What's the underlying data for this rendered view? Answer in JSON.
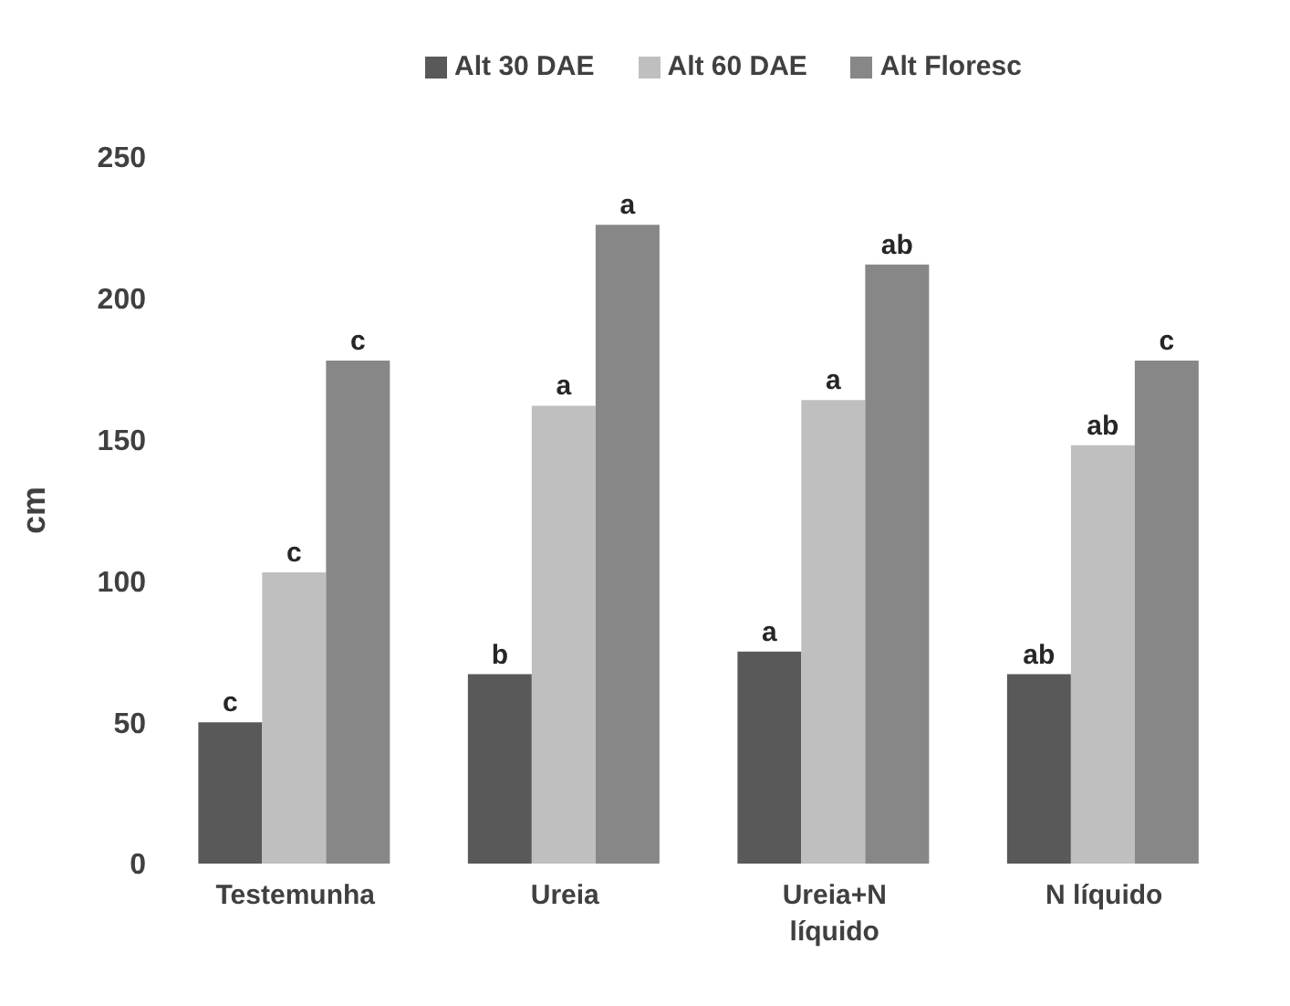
{
  "chart_data": {
    "type": "bar",
    "ylabel": "cm",
    "categories": [
      "Testemunha",
      "Ureia",
      "Ureia+N líquido",
      "N líquido"
    ],
    "series": [
      {
        "name": "Alt 30 DAE",
        "color": "#595959",
        "values": [
          50,
          67,
          75,
          67
        ],
        "value_labels": [
          "c",
          "b",
          "a",
          "ab"
        ]
      },
      {
        "name": "Alt 60 DAE",
        "color": "#bfbfbf",
        "values": [
          103,
          162,
          164,
          148
        ],
        "value_labels": [
          "c",
          "a",
          "a",
          "ab"
        ]
      },
      {
        "name": "Alt Floresc",
        "color": "#878787",
        "values": [
          178,
          226,
          212,
          178
        ],
        "value_labels": [
          "c",
          "a",
          "ab",
          "c"
        ]
      }
    ],
    "ylim": [
      0,
      250
    ],
    "yticks": [
      0,
      50,
      100,
      150,
      200,
      250
    ],
    "grid": false,
    "legend": "top"
  }
}
